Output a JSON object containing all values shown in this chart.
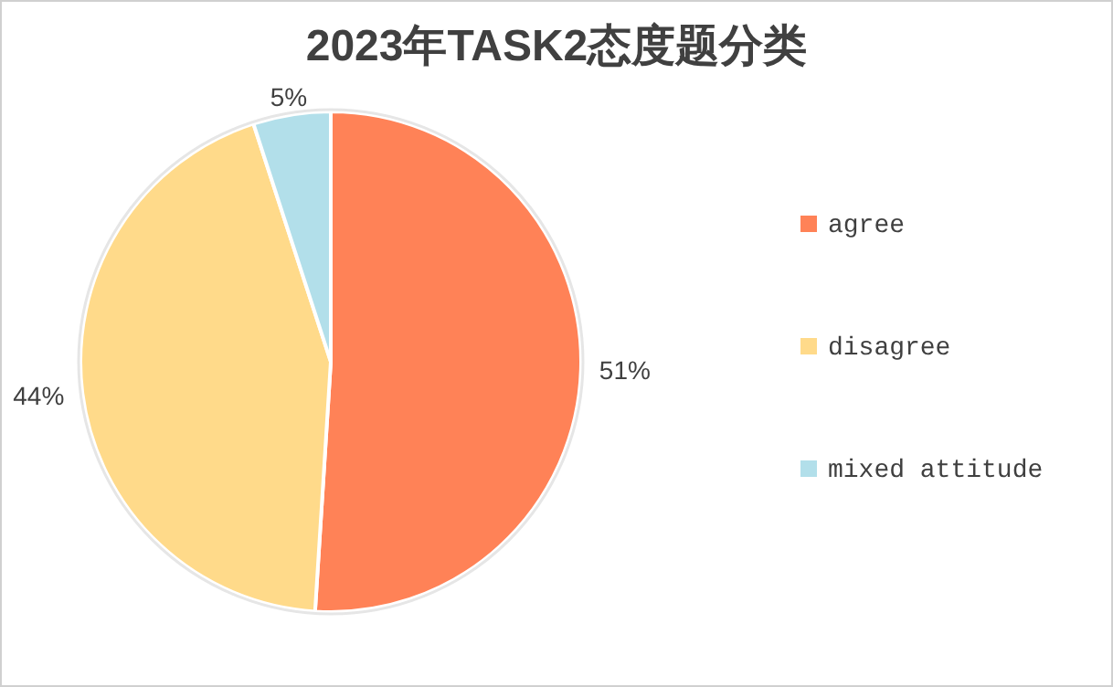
{
  "chart_data": {
    "type": "pie",
    "title": "2023年TASK2态度题分类",
    "categories": [
      "agree",
      "disagree",
      "mixed attitude"
    ],
    "values": [
      51,
      44,
      5
    ],
    "colors": [
      "#ff8257",
      "#ffda8a",
      "#b2dfea"
    ],
    "value_labels": [
      "51%",
      "44%",
      "5%"
    ],
    "legend": "right"
  }
}
